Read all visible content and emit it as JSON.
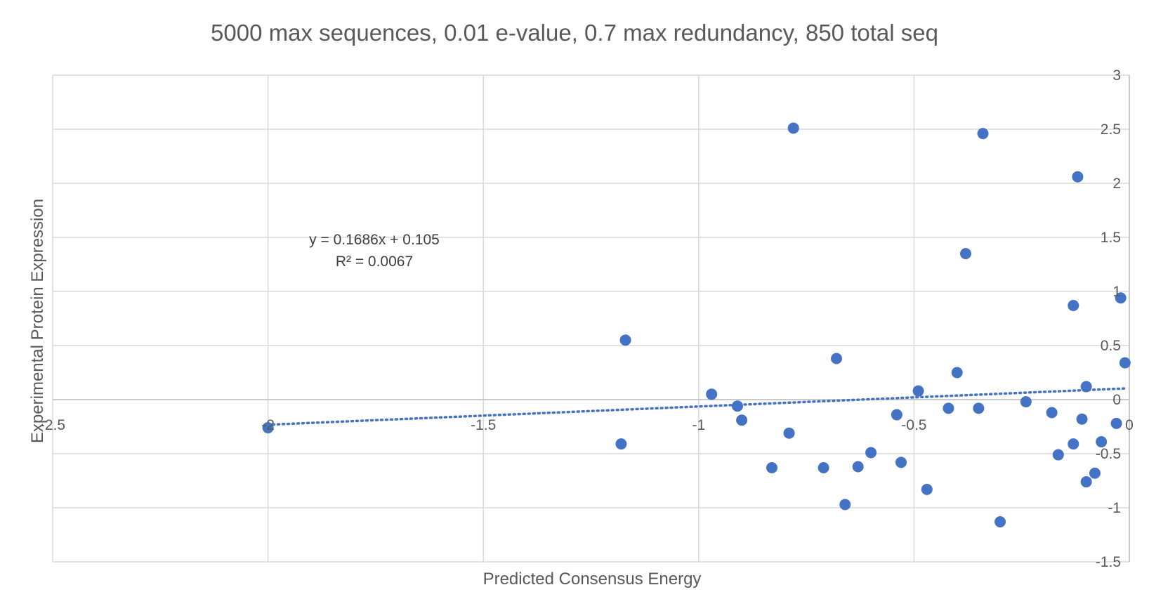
{
  "chart_data": {
    "type": "scatter",
    "title": "5000 max sequences, 0.01 e-value, 0.7 max redundancy, 850 total seq",
    "xlabel": "Predicted Consensus Energy",
    "ylabel": "Experimental Protein Expression",
    "xlim": [
      -2.5,
      0
    ],
    "ylim": [
      -1.5,
      3
    ],
    "xticks": [
      -2.5,
      -2,
      -1.5,
      -1,
      -0.5,
      0
    ],
    "xtick_labels": [
      "-2.5",
      "-2",
      "-1.5",
      "-1",
      "-0.5",
      "0"
    ],
    "yticks": [
      -1.5,
      -1,
      -0.5,
      0,
      0.5,
      1,
      1.5,
      2,
      2.5,
      3
    ],
    "ytick_labels": [
      "-1.5",
      "-1",
      "-0.5",
      "0",
      "0.5",
      "1",
      "1.5",
      "2",
      "2.5",
      "3"
    ],
    "grid": true,
    "legend": false,
    "point_color": "#4472c4",
    "trendline": {
      "type": "linear",
      "slope": 0.1686,
      "intercept": 0.105,
      "equation_label": "y = 0.1686x + 0.105",
      "r2_label": "R² = 0.0067"
    },
    "points": [
      {
        "x": -2.0,
        "y": -0.26
      },
      {
        "x": -1.17,
        "y": 0.55
      },
      {
        "x": -1.18,
        "y": -0.41
      },
      {
        "x": -0.97,
        "y": 0.05
      },
      {
        "x": -0.91,
        "y": -0.06
      },
      {
        "x": -0.9,
        "y": -0.19
      },
      {
        "x": -0.83,
        "y": -0.63
      },
      {
        "x": -0.79,
        "y": -0.31
      },
      {
        "x": -0.78,
        "y": 2.51
      },
      {
        "x": -0.71,
        "y": -0.63
      },
      {
        "x": -0.68,
        "y": 0.38
      },
      {
        "x": -0.66,
        "y": -0.97
      },
      {
        "x": -0.63,
        "y": -0.62
      },
      {
        "x": -0.6,
        "y": -0.49
      },
      {
        "x": -0.54,
        "y": -0.14
      },
      {
        "x": -0.53,
        "y": -0.58
      },
      {
        "x": -0.49,
        "y": 0.08
      },
      {
        "x": -0.47,
        "y": -0.83
      },
      {
        "x": -0.42,
        "y": -0.08
      },
      {
        "x": -0.4,
        "y": 0.25
      },
      {
        "x": -0.38,
        "y": 1.35
      },
      {
        "x": -0.35,
        "y": -0.08
      },
      {
        "x": -0.34,
        "y": 2.46
      },
      {
        "x": -0.3,
        "y": -1.13
      },
      {
        "x": -0.24,
        "y": -0.02
      },
      {
        "x": -0.18,
        "y": -0.12
      },
      {
        "x": -0.165,
        "y": -0.51
      },
      {
        "x": -0.13,
        "y": -0.41
      },
      {
        "x": -0.13,
        "y": 0.87
      },
      {
        "x": -0.12,
        "y": 2.06
      },
      {
        "x": -0.11,
        "y": -0.18
      },
      {
        "x": -0.1,
        "y": -0.76
      },
      {
        "x": -0.1,
        "y": 0.12
      },
      {
        "x": -0.08,
        "y": -0.68
      },
      {
        "x": -0.065,
        "y": -0.39
      },
      {
        "x": -0.03,
        "y": -0.22
      },
      {
        "x": -0.02,
        "y": 0.94
      },
      {
        "x": -0.01,
        "y": 0.34
      }
    ]
  }
}
